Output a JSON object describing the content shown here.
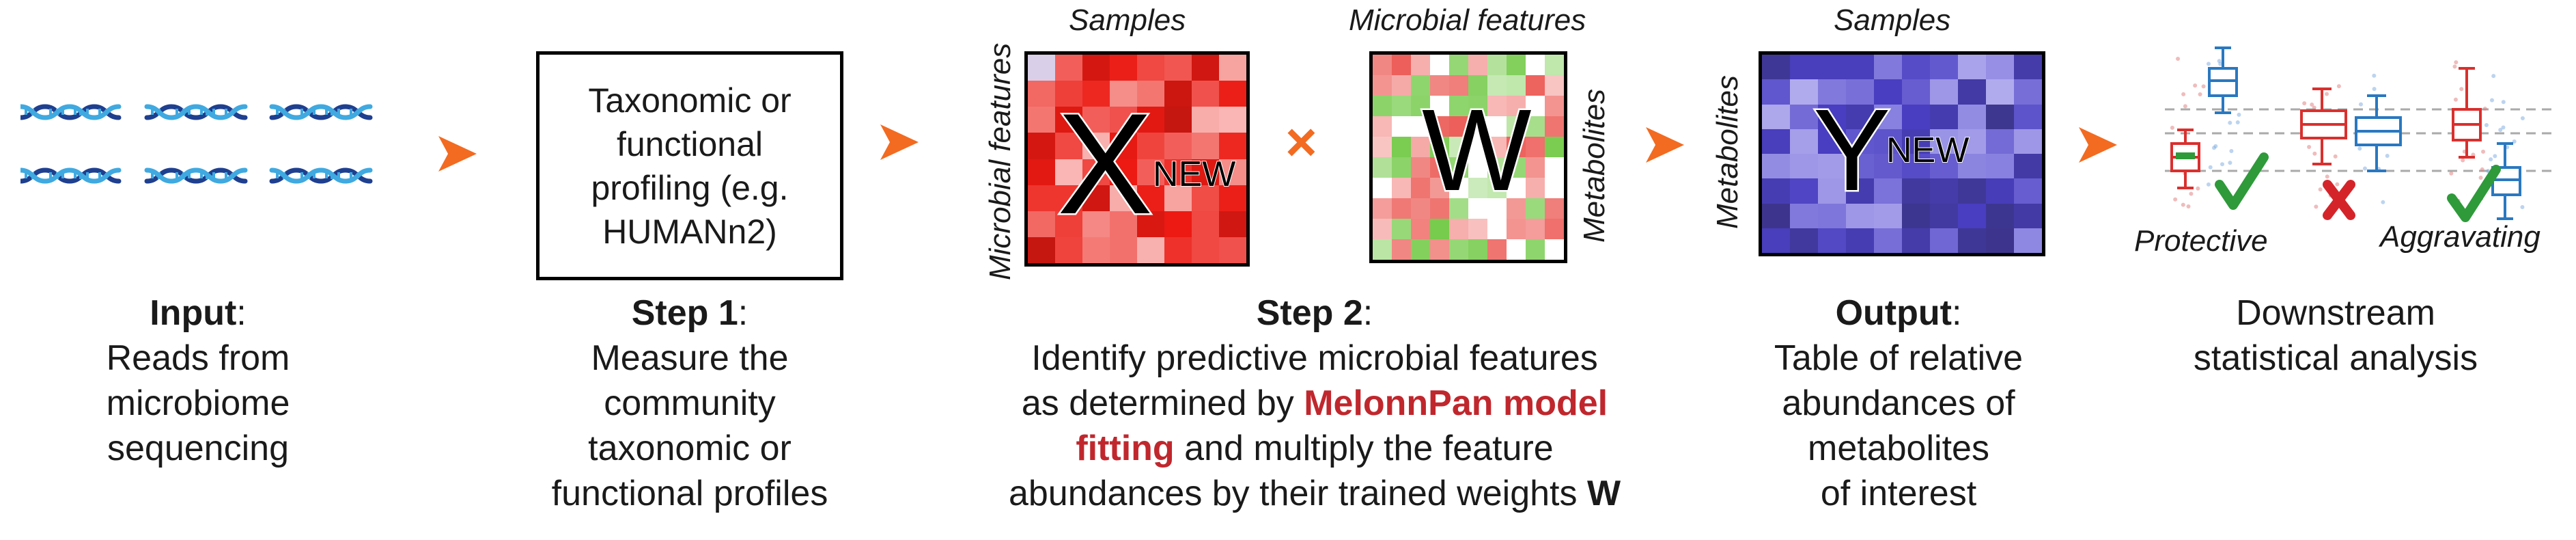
{
  "input": {
    "title": "Input",
    "colon": ":",
    "lines": [
      "Reads from",
      "microbiome",
      "sequencing"
    ]
  },
  "step1": {
    "box_lines": [
      "Taxonomic or",
      "functional",
      "profiling (e.g.",
      "HUMANn2)"
    ],
    "title": "Step 1",
    "colon": ":",
    "lines": [
      "Measure the",
      "community",
      "taxonomic or",
      "functional profiles"
    ]
  },
  "step2": {
    "matrix_x": {
      "letter": "X",
      "subscript": "NEW",
      "top_label": "Samples",
      "side_label": "Microbial features"
    },
    "multiply_symbol": "×",
    "matrix_w": {
      "letter": "W",
      "top_label": "Microbial features",
      "side_label": "Metabolites"
    },
    "title": "Step 2",
    "colon": ":",
    "line1": "Identify predictive microbial features",
    "line2_pre": "as determined by ",
    "line2_highlight": "MelonnPan model",
    "line3_highlight": "fitting",
    "line3_post": " and multiply the feature",
    "line4_pre": "abundances by their trained weights ",
    "line4_bold": "W"
  },
  "output": {
    "matrix_y": {
      "letter": "Y",
      "subscript": "NEW",
      "top_label": "Samples",
      "side_label": "Metabolites"
    },
    "title": "Output",
    "colon": ":",
    "lines": [
      "Table of relative",
      "abundances of",
      "metabolites",
      "of interest"
    ]
  },
  "downstream": {
    "lines": [
      "Downstream",
      "statistical analysis"
    ],
    "label_protective": "Protective",
    "label_aggravating": "Aggravating"
  },
  "colors": {
    "arrow": "#f26b21",
    "highlight": "#c0272d",
    "dna_dark": "#1f3f8f",
    "dna_light": "#3fa9e0",
    "check": "#2e9a3a",
    "cross": "#d4242a",
    "box_red": "#d9302e",
    "box_blue": "#2a78c0"
  },
  "icons": [
    "dna-icon",
    "arrow-right-icon",
    "multiply-icon",
    "checkmark-icon",
    "cross-icon",
    "boxplot-icon"
  ]
}
